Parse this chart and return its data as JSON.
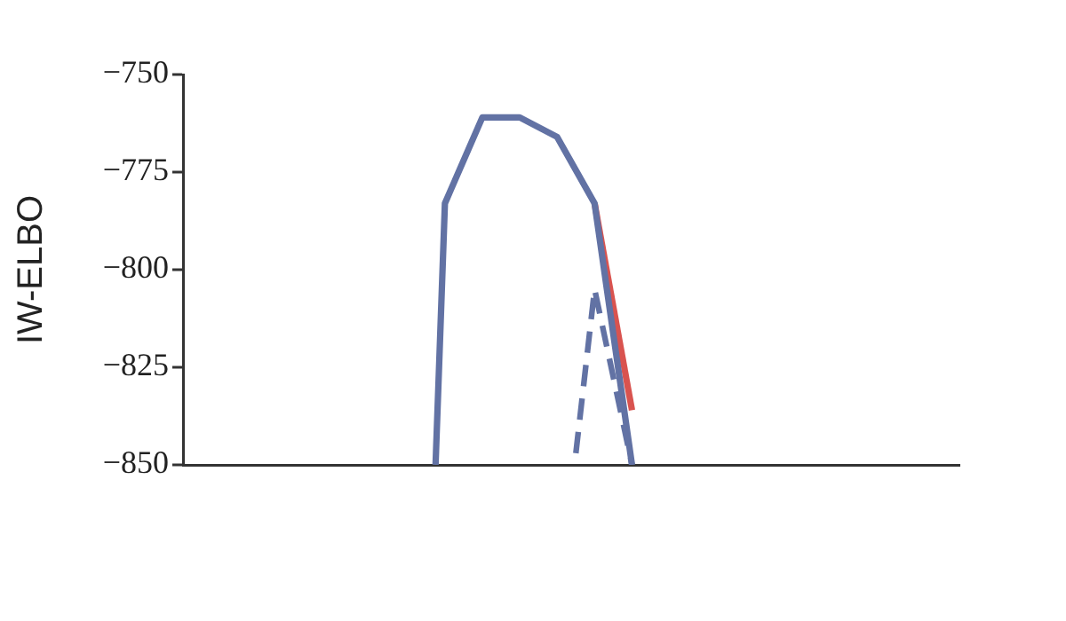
{
  "chart_data": {
    "type": "line",
    "ylabel": "IW-ELBO",
    "categories": [
      null,
      null,
      null,
      null,
      null,
      null,
      null,
      null,
      null,
      null,
      null,
      null,
      null,
      null,
      null,
      null,
      null,
      null,
      null,
      null,
      null,
      null,
      null,
      null,
      null,
      null,
      null,
      null,
      null,
      null,
      null,
      null,
      null,
      null,
      null,
      null,
      null,
      null,
      null,
      null,
      null,
      null,
      null,
      null,
      null,
      null,
      null,
      null,
      null,
      null,
      null,
      null,
      null,
      null,
      null,
      null,
      null,
      null,
      null,
      null,
      null,
      null,
      null,
      null,
      null,
      null,
      null,
      null,
      null,
      null,
      null,
      null,
      null,
      null,
      null,
      null,
      null,
      null,
      null,
      null,
      null,
      null,
      null,
      null
    ],
    "series": [
      {
        "color": "#d9534f",
        "values": [
          null,
          null,
          null,
          null,
          null,
          null,
          null,
          null,
          null,
          null,
          null,
          null,
          null,
          null,
          null,
          null,
          null,
          null,
          null,
          null,
          null,
          null,
          null,
          null,
          null,
          null,
          null,
          null,
          null,
          null,
          null,
          null,
          null,
          null,
          null,
          null,
          null,
          null,
          null,
          null,
          null,
          null,
          null,
          null,
          -783,
          null,
          null,
          null,
          -836,
          null,
          null,
          null,
          null,
          null,
          null,
          null,
          null,
          null,
          null,
          null,
          null,
          null,
          null,
          null,
          null,
          null,
          null,
          null,
          null,
          null,
          null,
          null,
          null,
          null,
          null,
          null,
          null,
          null,
          null,
          null,
          null,
          null,
          null,
          null
        ]
      },
      {
        "color": "#6272a4",
        "values": [
          null,
          null,
          null,
          null,
          null,
          null,
          null,
          null,
          null,
          null,
          null,
          null,
          null,
          null,
          null,
          null,
          null,
          null,
          null,
          null,
          null,
          null,
          null,
          null,
          null,
          null,
          null,
          -850,
          -783,
          null,
          null,
          null,
          -761,
          null,
          null,
          null,
          -761,
          null,
          null,
          null,
          -766,
          null,
          null,
          null,
          -783,
          null,
          null,
          null,
          -850,
          null,
          null,
          null,
          null,
          null,
          null,
          null,
          null,
          null,
          null,
          null,
          null,
          null,
          null,
          null,
          null,
          null,
          null,
          null,
          null,
          null,
          null,
          null,
          null,
          null,
          null,
          null,
          null,
          null,
          null,
          null,
          null,
          null,
          null,
          null
        ]
      },
      {
        "color": "#6272a4",
        "line_style": "dashed",
        "values": [
          null,
          null,
          null,
          null,
          null,
          null,
          null,
          null,
          null,
          null,
          null,
          null,
          null,
          null,
          null,
          null,
          null,
          null,
          null,
          null,
          null,
          null,
          null,
          null,
          null,
          null,
          null,
          null,
          null,
          null,
          null,
          null,
          null,
          null,
          null,
          null,
          null,
          null,
          null,
          null,
          null,
          null,
          -847,
          null,
          -805,
          null,
          null,
          null,
          -850,
          null,
          null,
          null,
          null,
          null,
          null,
          null,
          null,
          null,
          null,
          null,
          null,
          null,
          null,
          null,
          null,
          null,
          null,
          null,
          null,
          null,
          null,
          null,
          null,
          null,
          null,
          null,
          null,
          null,
          null,
          null,
          null,
          null,
          null,
          null
        ]
      }
    ],
    "ylim": [
      -850,
      -750
    ],
    "yticks": [
      {
        "value": -850,
        "label": "−850"
      },
      {
        "value": -825,
        "label": "−825"
      },
      {
        "value": -800,
        "label": "−800"
      },
      {
        "value": -775,
        "label": "−775"
      },
      {
        "value": -750,
        "label": "−750"
      }
    ],
    "grid": false,
    "legend": false,
    "marker": "none",
    "tick_labels": "y"
  }
}
